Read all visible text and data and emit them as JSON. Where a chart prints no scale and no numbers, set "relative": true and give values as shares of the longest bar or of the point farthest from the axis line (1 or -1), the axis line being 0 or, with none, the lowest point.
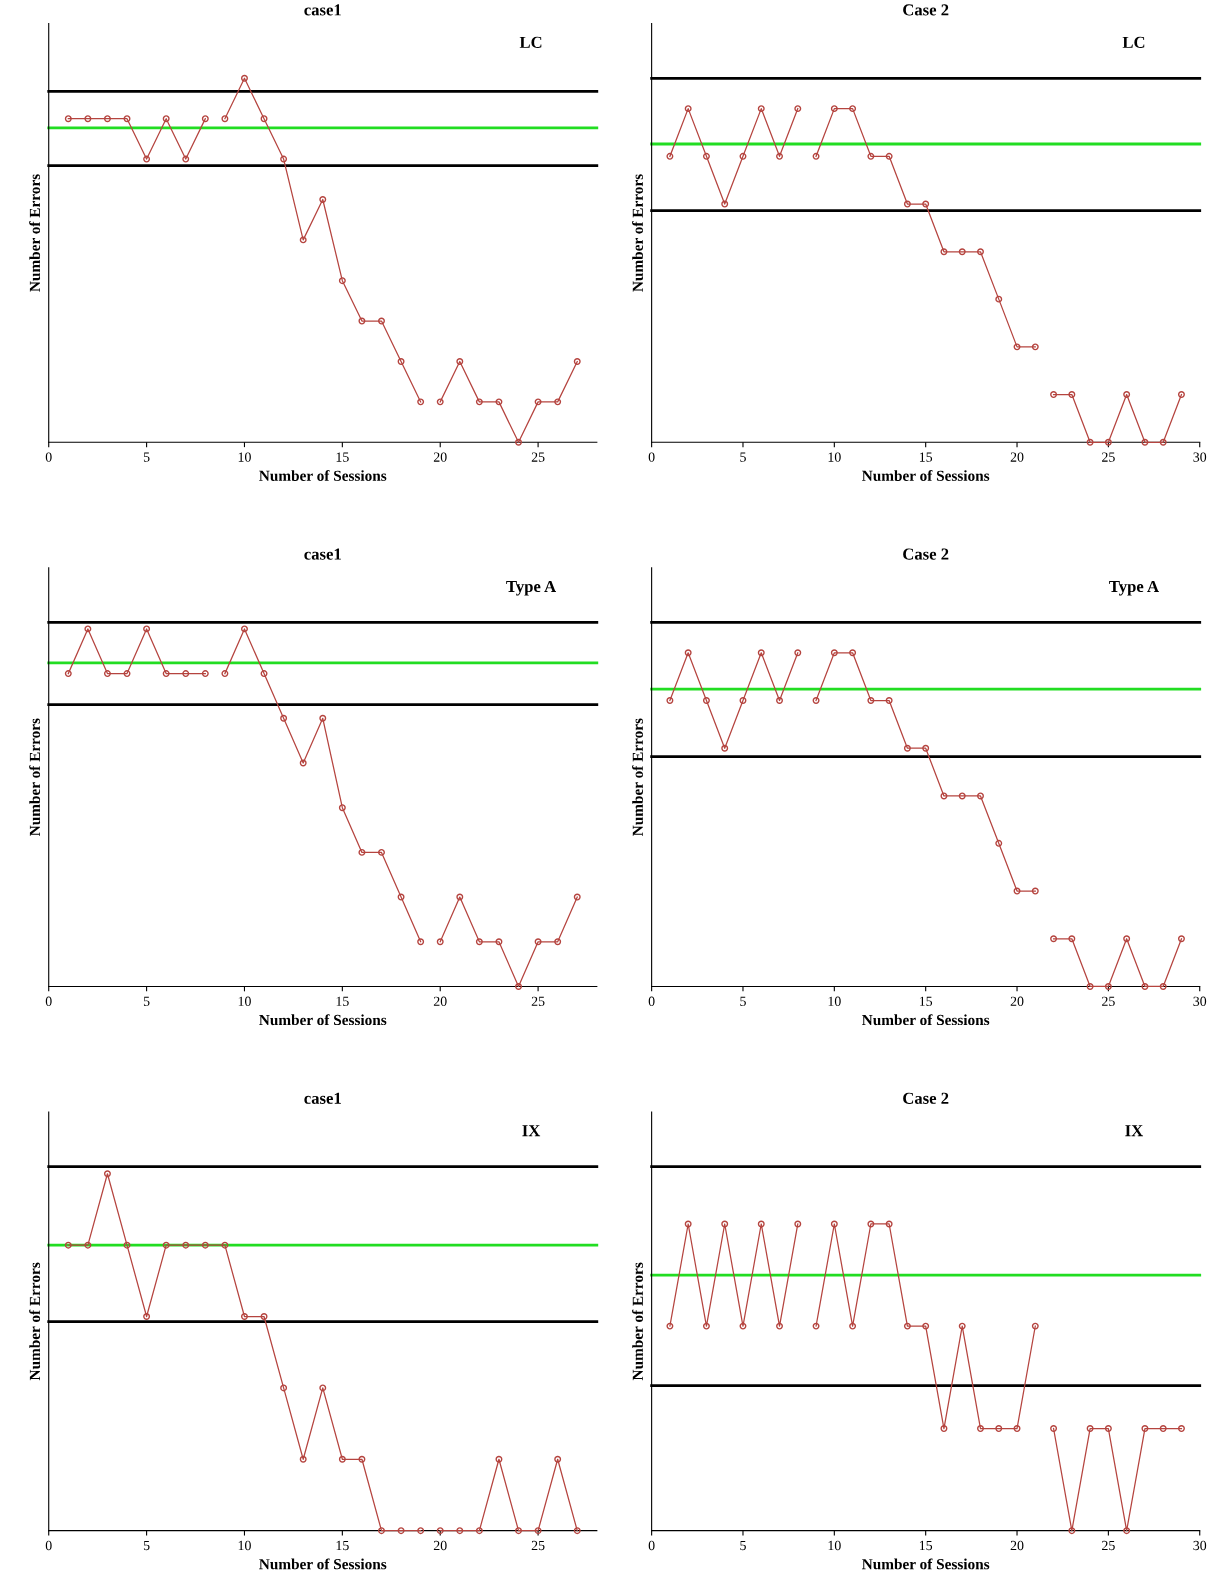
{
  "chart_data": [
    {
      "type": "line",
      "title": "case1",
      "annotations": [
        "LC"
      ],
      "xlabel": "Number of Sessions",
      "ylabel": "Number of Errors",
      "relative": true,
      "marker": "circle",
      "xlim": [
        0,
        28
      ],
      "xticks": [
        0,
        5,
        10,
        15,
        20,
        25
      ],
      "series": [
        {
          "color": "#b5443f",
          "x": [
            1,
            2,
            3,
            4,
            5,
            6,
            7,
            8
          ],
          "values": [
            0.889,
            0.889,
            0.889,
            0.889,
            0.778,
            0.889,
            0.778,
            0.889
          ]
        },
        {
          "color": "#b5443f",
          "x": [
            9,
            10,
            11,
            12,
            13,
            14,
            15,
            16,
            17,
            18,
            19
          ],
          "values": [
            0.889,
            1,
            0.889,
            0.778,
            0.556,
            0.667,
            0.444,
            0.333,
            0.333,
            0.222,
            0.111
          ]
        },
        {
          "color": "#b5443f",
          "x": [
            20,
            21,
            22,
            23,
            24,
            25,
            26,
            27
          ],
          "values": [
            0.111,
            0.222,
            0.111,
            0.111,
            0,
            0.111,
            0.111,
            0.222
          ]
        }
      ],
      "ref_lines": [
        {
          "axis": "y",
          "value": 0.964,
          "color": "#000000"
        },
        {
          "axis": "y",
          "value": 0.864,
          "color": "#22dd22"
        },
        {
          "axis": "y",
          "value": 0.76,
          "color": "#000000"
        }
      ]
    },
    {
      "type": "line",
      "title": "Case 2",
      "annotations": [
        "LC"
      ],
      "xlabel": "Number of Sessions",
      "ylabel": "Number of Errors",
      "relative": true,
      "marker": "circle",
      "xlim": [
        0,
        30
      ],
      "xticks": [
        0,
        5,
        10,
        15,
        20,
        25,
        30
      ],
      "series": [
        {
          "color": "#b5443f",
          "x": [
            1,
            2,
            3,
            4,
            5,
            6,
            7,
            8
          ],
          "values": [
            0.857,
            1,
            0.857,
            0.714,
            0.857,
            1,
            0.857,
            1
          ]
        },
        {
          "color": "#b5443f",
          "x": [
            9,
            10,
            11,
            12,
            13,
            14,
            15,
            16,
            17,
            18,
            19,
            20,
            21
          ],
          "values": [
            0.857,
            1,
            1,
            0.857,
            0.857,
            0.714,
            0.714,
            0.571,
            0.571,
            0.571,
            0.429,
            0.286,
            0.286
          ]
        },
        {
          "color": "#b5443f",
          "x": [
            22,
            23,
            24,
            25,
            26,
            27,
            28,
            29
          ],
          "values": [
            0.143,
            0.143,
            0,
            0,
            0.143,
            0,
            0,
            0.143
          ]
        }
      ],
      "ref_lines": [
        {
          "axis": "y",
          "value": 1.091,
          "color": "#000000"
        },
        {
          "axis": "y",
          "value": 0.894,
          "color": "#22dd22"
        },
        {
          "axis": "y",
          "value": 0.694,
          "color": "#000000"
        }
      ]
    },
    {
      "type": "line",
      "title": "case1",
      "annotations": [
        "Type A"
      ],
      "xlabel": "Number of Sessions",
      "ylabel": "Number of Errors",
      "relative": true,
      "marker": "circle",
      "xlim": [
        0,
        28
      ],
      "xticks": [
        0,
        5,
        10,
        15,
        20,
        25
      ],
      "series": [
        {
          "color": "#b5443f",
          "x": [
            1,
            2,
            3,
            4,
            5,
            6,
            7,
            8
          ],
          "values": [
            0.875,
            1,
            0.875,
            0.875,
            1,
            0.875,
            0.875,
            0.875
          ]
        },
        {
          "color": "#b5443f",
          "x": [
            9,
            10,
            11,
            12,
            13,
            14,
            15,
            16,
            17,
            18,
            19
          ],
          "values": [
            0.875,
            1,
            0.875,
            0.75,
            0.625,
            0.75,
            0.5,
            0.375,
            0.375,
            0.25,
            0.125
          ]
        },
        {
          "color": "#b5443f",
          "x": [
            20,
            21,
            22,
            23,
            24,
            25,
            26,
            27
          ],
          "values": [
            0.125,
            0.25,
            0.125,
            0.125,
            0,
            0.125,
            0.125,
            0.25
          ]
        }
      ],
      "ref_lines": [
        {
          "axis": "y",
          "value": 1.018,
          "color": "#000000"
        },
        {
          "axis": "y",
          "value": 0.905,
          "color": "#22dd22"
        },
        {
          "axis": "y",
          "value": 0.788,
          "color": "#000000"
        }
      ]
    },
    {
      "type": "line",
      "title": "Case 2",
      "annotations": [
        "Type A"
      ],
      "xlabel": "Number of Sessions",
      "ylabel": "Number of Errors",
      "relative": true,
      "marker": "circle",
      "xlim": [
        0,
        30
      ],
      "xticks": [
        0,
        5,
        10,
        15,
        20,
        25,
        30
      ],
      "series": [
        {
          "color": "#b5443f",
          "x": [
            1,
            2,
            3,
            4,
            5,
            6,
            7,
            8
          ],
          "values": [
            0.857,
            1,
            0.857,
            0.714,
            0.857,
            1,
            0.857,
            1
          ]
        },
        {
          "color": "#b5443f",
          "x": [
            9,
            10,
            11,
            12,
            13,
            14,
            15,
            16,
            17,
            18,
            19,
            20,
            21
          ],
          "values": [
            0.857,
            1,
            1,
            0.857,
            0.857,
            0.714,
            0.714,
            0.571,
            0.571,
            0.571,
            0.429,
            0.286,
            0.286
          ]
        },
        {
          "color": "#b5443f",
          "x": [
            22,
            23,
            24,
            25,
            26,
            27,
            28,
            29
          ],
          "values": [
            0.143,
            0.143,
            0,
            0,
            0.143,
            0,
            0,
            0.143
          ]
        }
      ],
      "ref_lines": [
        {
          "axis": "y",
          "value": 1.091,
          "color": "#000000"
        },
        {
          "axis": "y",
          "value": 0.891,
          "color": "#22dd22"
        },
        {
          "axis": "y",
          "value": 0.689,
          "color": "#000000"
        }
      ]
    },
    {
      "type": "line",
      "title": "case1",
      "annotations": [
        "IX"
      ],
      "xlabel": "Number of Sessions",
      "ylabel": "Number of Errors",
      "relative": true,
      "marker": "circle",
      "xlim": [
        0,
        28
      ],
      "xticks": [
        0,
        5,
        10,
        15,
        20,
        25
      ],
      "series": [
        {
          "color": "#b5443f",
          "x": [
            1,
            2,
            3,
            4,
            5,
            6,
            7,
            8,
            9,
            10,
            11,
            12,
            13,
            14,
            15,
            16,
            17,
            18,
            19
          ],
          "values": [
            0.8,
            0.8,
            1,
            0.8,
            0.6,
            0.8,
            0.8,
            0.8,
            0.8,
            0.6,
            0.6,
            0.4,
            0.2,
            0.4,
            0.2,
            0.2,
            0,
            0,
            0
          ]
        },
        {
          "color": "#b5443f",
          "x": [
            20,
            21,
            22,
            23,
            24,
            25,
            26,
            27
          ],
          "values": [
            0,
            0,
            0,
            0.2,
            0,
            0,
            0.2,
            0
          ]
        }
      ],
      "ref_lines": [
        {
          "axis": "y",
          "value": 1.02,
          "color": "#000000"
        },
        {
          "axis": "y",
          "value": 0.8,
          "color": "#22dd22"
        },
        {
          "axis": "y",
          "value": 0.586,
          "color": "#000000"
        }
      ]
    },
    {
      "type": "line",
      "title": "Case 2",
      "annotations": [
        "IX"
      ],
      "xlabel": "Number of Sessions",
      "ylabel": "Number of Errors",
      "relative": true,
      "marker": "circle",
      "xlim": [
        0,
        30
      ],
      "xticks": [
        0,
        5,
        10,
        15,
        20,
        25,
        30
      ],
      "series": [
        {
          "color": "#b5443f",
          "x": [
            1,
            2,
            3,
            4,
            5,
            6,
            7,
            8
          ],
          "values": [
            0.667,
            1,
            0.667,
            1,
            0.667,
            1,
            0.667,
            1
          ]
        },
        {
          "color": "#b5443f",
          "x": [
            9,
            10,
            11,
            12,
            13,
            14,
            15,
            16,
            17,
            18,
            19,
            20,
            21
          ],
          "values": [
            0.667,
            1,
            0.667,
            1,
            1,
            0.667,
            0.667,
            0.333,
            0.667,
            0.333,
            0.333,
            0.333,
            0.667
          ]
        },
        {
          "color": "#b5443f",
          "x": [
            22,
            23,
            24,
            25,
            26,
            27,
            28,
            29
          ],
          "values": [
            0.333,
            0,
            0.333,
            0.333,
            0,
            0.333,
            0.333,
            0.333
          ]
        }
      ],
      "ref_lines": [
        {
          "axis": "y",
          "value": 1.187,
          "color": "#000000"
        },
        {
          "axis": "y",
          "value": 0.833,
          "color": "#22dd22"
        },
        {
          "axis": "y",
          "value": 0.473,
          "color": "#000000"
        }
      ]
    }
  ]
}
